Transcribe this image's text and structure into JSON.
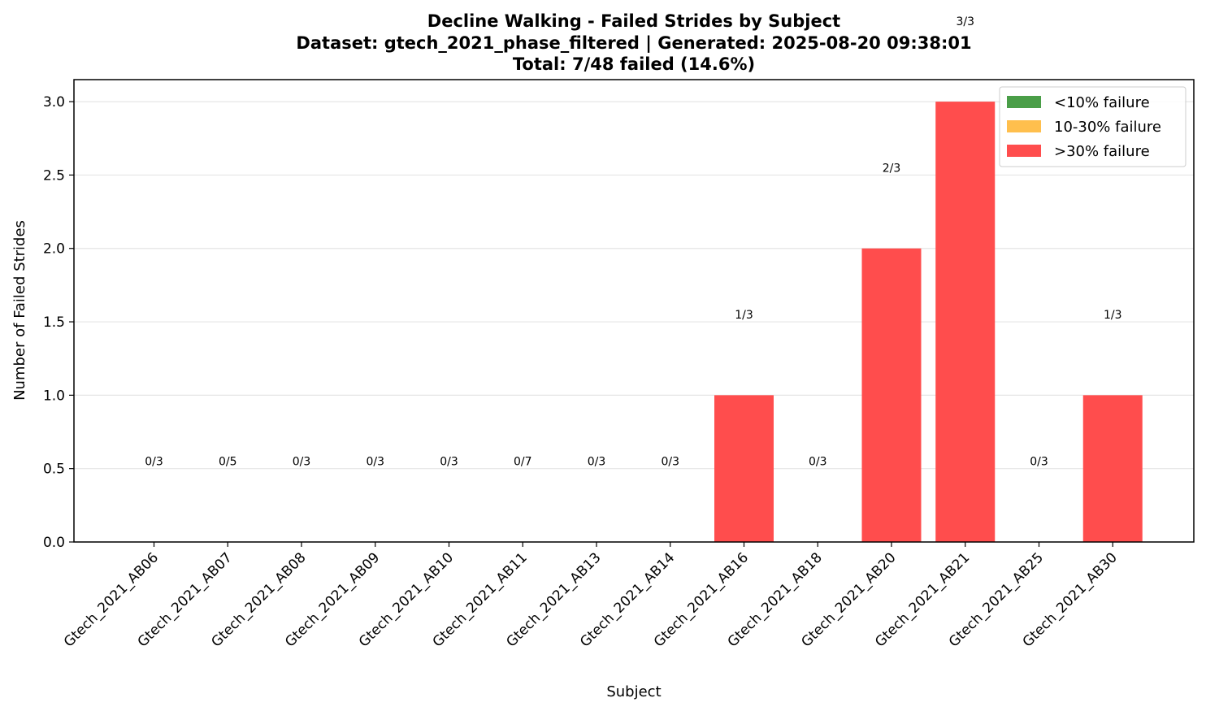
{
  "chart_data": {
    "type": "bar",
    "title": "Decline Walking - Failed Strides by Subject",
    "subtitle": "Dataset: gtech_2021_phase_filtered | Generated: 2025-08-20 09:38:01",
    "summary": "Total: 7/48 failed (14.6%)",
    "xlabel": "Subject",
    "ylabel": "Number of Failed Strides",
    "ylim": [
      0,
      3.15
    ],
    "yticks": [
      "0.0",
      "0.5",
      "1.0",
      "1.5",
      "2.0",
      "2.5",
      "3.0"
    ],
    "grid": "y",
    "legend_position": "top-right",
    "legend": [
      {
        "label": "<10% failure",
        "color": "#4a9e48"
      },
      {
        "label": "10-30% failure",
        "color": "#ffbf4d"
      },
      {
        "label": ">30% failure",
        "color": "#ff4d4d"
      }
    ],
    "categories": [
      "Gtech_2021_AB06",
      "Gtech_2021_AB07",
      "Gtech_2021_AB08",
      "Gtech_2021_AB09",
      "Gtech_2021_AB10",
      "Gtech_2021_AB11",
      "Gtech_2021_AB13",
      "Gtech_2021_AB14",
      "Gtech_2021_AB16",
      "Gtech_2021_AB18",
      "Gtech_2021_AB20",
      "Gtech_2021_AB21",
      "Gtech_2021_AB25",
      "Gtech_2021_AB30"
    ],
    "values": [
      0,
      0,
      0,
      0,
      0,
      0,
      0,
      0,
      1,
      0,
      2,
      3,
      0,
      1
    ],
    "labels": [
      "0/3",
      "0/5",
      "0/3",
      "0/3",
      "0/3",
      "0/7",
      "0/3",
      "0/3",
      "1/3",
      "0/3",
      "2/3",
      "3/3",
      "0/3",
      "1/3"
    ],
    "bar_color": "#ff4d4d"
  }
}
